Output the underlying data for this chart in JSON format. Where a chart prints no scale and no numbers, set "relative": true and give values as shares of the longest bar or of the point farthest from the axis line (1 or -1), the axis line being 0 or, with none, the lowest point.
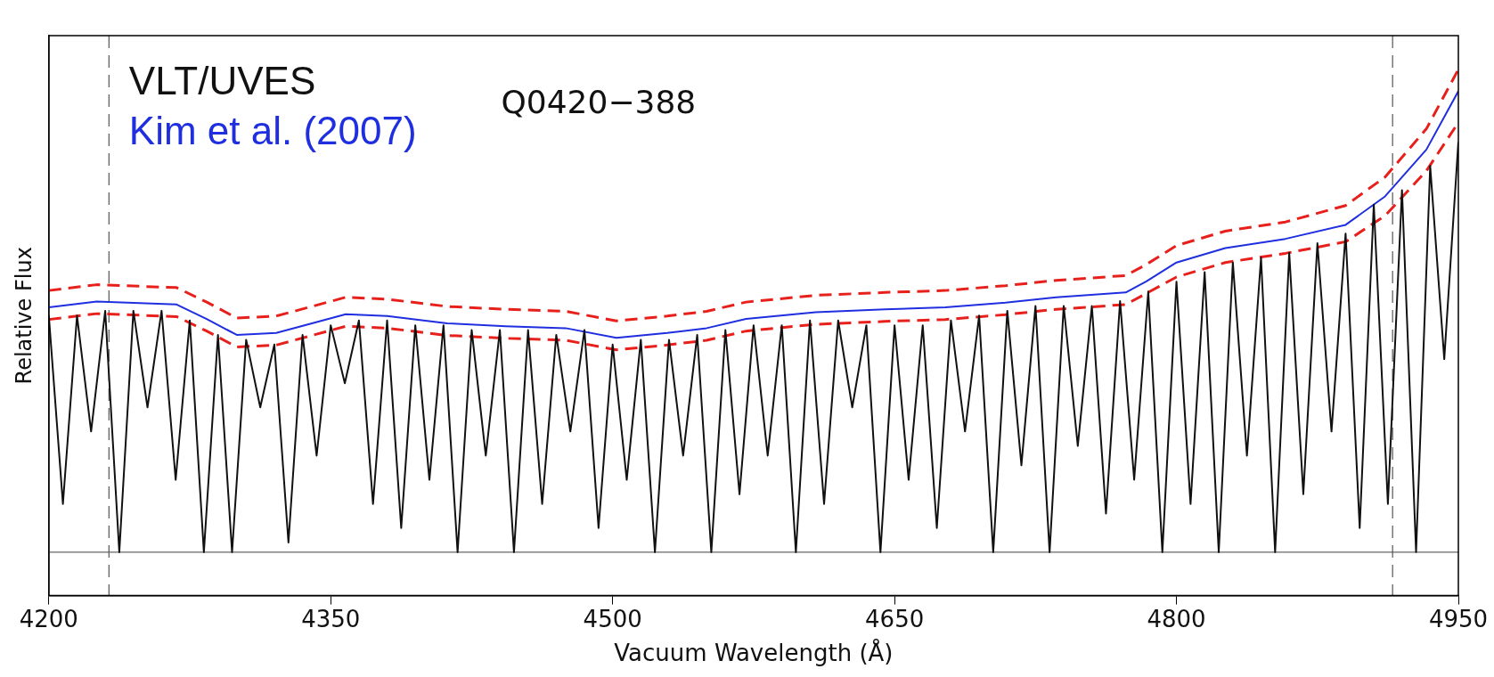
{
  "chart_data": {
    "type": "line",
    "relative": true,
    "xlabel": "Vacuum Wavelength (Å)",
    "ylabel": "Relative Flux",
    "annotations": [
      "Q0420−388"
    ],
    "legend": "top left",
    "marker": "none",
    "line_style": "solid",
    "grid": false,
    "xlim": [
      4200,
      4950
    ],
    "xticks": [
      4200,
      4350,
      4500,
      4650,
      4800,
      4950
    ],
    "ref_lines": [
      {
        "axis": "y",
        "value": 0,
        "color": "#666666",
        "line_style": "solid"
      },
      {
        "axis": "x",
        "value": 4232,
        "color": "#555555",
        "line_style": "dashed"
      },
      {
        "axis": "x",
        "value": 4915,
        "color": "#555555",
        "line_style": "dashed"
      }
    ],
    "series": [
      {
        "name": "VLT/UVES",
        "color": "#111111",
        "x": [
          4200,
          4207.5,
          4215,
          4222.5,
          4230,
          4237.5,
          4245,
          4252.5,
          4260,
          4267.5,
          4275,
          4282.5,
          4290,
          4297.5,
          4305,
          4312.5,
          4320,
          4327.5,
          4335,
          4342.5,
          4350,
          4357.5,
          4365,
          4372.5,
          4380,
          4387.5,
          4395,
          4402.5,
          4410,
          4417.5,
          4425,
          4432.5,
          4440,
          4447.5,
          4455,
          4462.5,
          4470,
          4477.5,
          4485,
          4492.5,
          4500,
          4507.5,
          4515,
          4522.5,
          4530,
          4537.5,
          4545,
          4552.5,
          4560,
          4567.5,
          4575,
          4582.5,
          4590,
          4597.5,
          4605,
          4612.5,
          4620,
          4627.5,
          4635,
          4642.5,
          4650,
          4657.5,
          4665,
          4672.5,
          4680,
          4687.5,
          4695,
          4702.5,
          4710,
          4717.5,
          4725,
          4732.5,
          4740,
          4747.5,
          4755,
          4762.5,
          4770,
          4777.5,
          4785,
          4792.5,
          4800,
          4807.5,
          4815,
          4822.5,
          4830,
          4837.5,
          4845,
          4852.5,
          4860,
          4867.5,
          4875,
          4882.5,
          4890,
          4897.5,
          4905,
          4912.5,
          4920,
          4927.5,
          4935,
          4942.5,
          4950
        ],
        "values": [
          0.49,
          0.1,
          0.49,
          0.25,
          0.5,
          0.0,
          0.5,
          0.3,
          0.5,
          0.15,
          0.48,
          0.0,
          0.45,
          0.0,
          0.44,
          0.3,
          0.43,
          0.02,
          0.45,
          0.2,
          0.47,
          0.35,
          0.48,
          0.1,
          0.48,
          0.05,
          0.47,
          0.15,
          0.47,
          0.0,
          0.46,
          0.2,
          0.46,
          0.0,
          0.46,
          0.1,
          0.45,
          0.25,
          0.46,
          0.05,
          0.43,
          0.15,
          0.44,
          0.0,
          0.44,
          0.2,
          0.45,
          0.0,
          0.46,
          0.12,
          0.47,
          0.2,
          0.47,
          0.0,
          0.48,
          0.1,
          0.48,
          0.3,
          0.47,
          0.0,
          0.47,
          0.15,
          0.47,
          0.05,
          0.48,
          0.25,
          0.49,
          0.0,
          0.5,
          0.18,
          0.51,
          0.0,
          0.51,
          0.22,
          0.51,
          0.08,
          0.52,
          0.15,
          0.54,
          0.0,
          0.56,
          0.1,
          0.58,
          0.0,
          0.6,
          0.2,
          0.61,
          0.0,
          0.62,
          0.12,
          0.64,
          0.25,
          0.66,
          0.05,
          0.72,
          0.1,
          0.75,
          0.0,
          0.8,
          0.4,
          0.85
        ]
      },
      {
        "name": "Kim et al. (2007)",
        "color": "#1f2fe0",
        "x": [
          4200,
          4225.5,
          4268,
          4284,
          4300,
          4321,
          4340,
          4358,
          4380,
          4412,
          4443,
          4475,
          4502,
          4529,
          4550,
          4571,
          4608,
          4645,
          4677,
          4709,
          4736,
          4773,
          4784,
          4800,
          4826,
          4858,
          4890,
          4911,
          4933,
          4950
        ],
        "values": [
          0.507,
          0.519,
          0.513,
          0.483,
          0.45,
          0.454,
          0.474,
          0.493,
          0.489,
          0.474,
          0.468,
          0.464,
          0.444,
          0.454,
          0.464,
          0.483,
          0.497,
          0.503,
          0.507,
          0.517,
          0.528,
          0.538,
          0.561,
          0.6,
          0.63,
          0.649,
          0.678,
          0.737,
          0.834,
          0.955
        ]
      },
      {
        "color": "#e8201c",
        "line_style": "dashed",
        "x": [
          4200,
          4225.5,
          4268,
          4284,
          4300,
          4321,
          4340,
          4358,
          4380,
          4412,
          4443,
          4475,
          4502,
          4529,
          4550,
          4571,
          4608,
          4645,
          4677,
          4709,
          4736,
          4773,
          4784,
          4800,
          4826,
          4858,
          4890,
          4911,
          4933,
          4950
        ],
        "values": [
          0.542,
          0.554,
          0.548,
          0.518,
          0.485,
          0.489,
          0.509,
          0.528,
          0.524,
          0.509,
          0.503,
          0.499,
          0.479,
          0.489,
          0.499,
          0.518,
          0.532,
          0.538,
          0.542,
          0.552,
          0.563,
          0.573,
          0.596,
          0.635,
          0.665,
          0.684,
          0.718,
          0.777,
          0.877,
          1.0
        ]
      },
      {
        "color": "#e8201c",
        "line_style": "dashed",
        "x": [
          4200,
          4225.5,
          4268,
          4284,
          4300,
          4321,
          4340,
          4358,
          4380,
          4412,
          4443,
          4475,
          4502,
          4529,
          4550,
          4571,
          4608,
          4645,
          4677,
          4709,
          4736,
          4773,
          4784,
          4800,
          4826,
          4858,
          4890,
          4911,
          4933,
          4950
        ],
        "values": [
          0.482,
          0.494,
          0.488,
          0.458,
          0.425,
          0.429,
          0.449,
          0.468,
          0.464,
          0.449,
          0.443,
          0.439,
          0.419,
          0.429,
          0.439,
          0.458,
          0.472,
          0.478,
          0.482,
          0.492,
          0.503,
          0.513,
          0.536,
          0.57,
          0.6,
          0.619,
          0.643,
          0.697,
          0.79,
          0.89
        ]
      }
    ]
  }
}
